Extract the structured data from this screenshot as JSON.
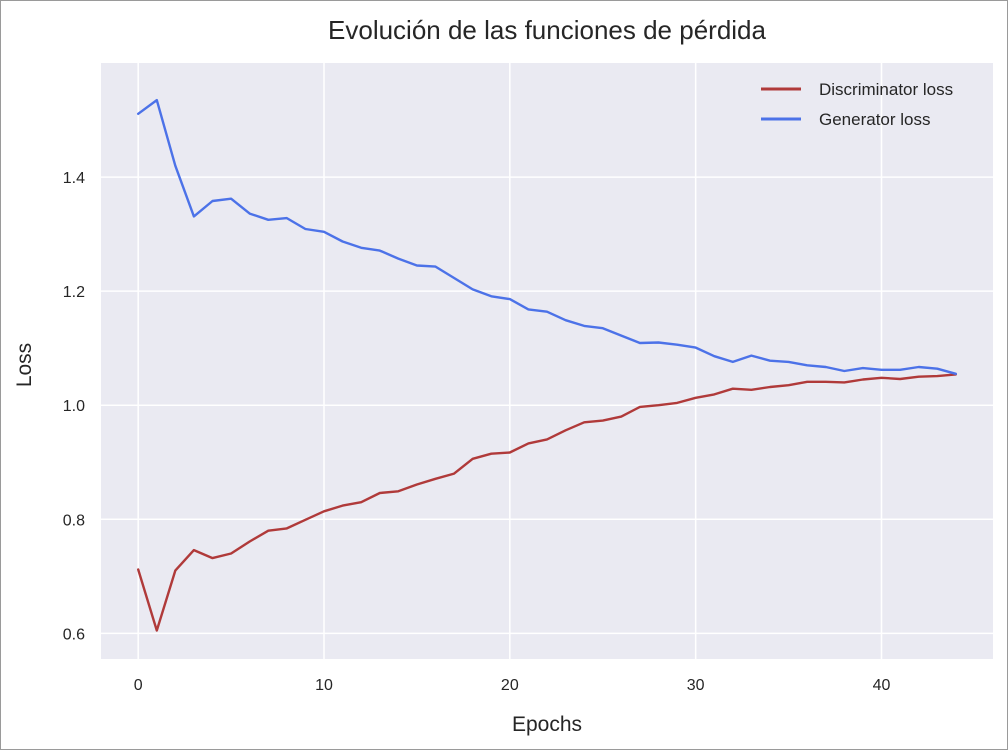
{
  "chart_data": {
    "type": "line",
    "title": "Evolución de las funciones de pérdida",
    "xlabel": "Epochs",
    "ylabel": "Loss",
    "xlim": [
      -2,
      46
    ],
    "ylim": [
      0.555,
      1.6
    ],
    "xticks": [
      0,
      10,
      20,
      30,
      40
    ],
    "yticks": [
      0.6,
      0.8,
      1.0,
      1.2,
      1.4
    ],
    "xtick_labels": [
      "0",
      "10",
      "20",
      "30",
      "40"
    ],
    "ytick_labels": [
      "0.6",
      "0.8",
      "1.0",
      "1.2",
      "1.4"
    ],
    "grid": true,
    "legend_position": "top-right",
    "background": "#eaeaf2",
    "x": [
      0,
      1,
      2,
      3,
      4,
      5,
      6,
      7,
      8,
      9,
      10,
      11,
      12,
      13,
      14,
      15,
      16,
      17,
      18,
      19,
      20,
      21,
      22,
      23,
      24,
      25,
      26,
      27,
      28,
      29,
      30,
      31,
      32,
      33,
      34,
      35,
      36,
      37,
      38,
      39,
      40,
      41,
      42,
      43,
      44
    ],
    "series": [
      {
        "name": "Discriminator loss",
        "color": "#b03a3a",
        "values": [
          0.712,
          0.605,
          0.71,
          0.746,
          0.732,
          0.74,
          0.761,
          0.78,
          0.784,
          0.799,
          0.814,
          0.824,
          0.83,
          0.846,
          0.849,
          0.861,
          0.871,
          0.88,
          0.906,
          0.915,
          0.917,
          0.933,
          0.94,
          0.956,
          0.97,
          0.973,
          0.98,
          0.997,
          1.0,
          1.004,
          1.013,
          1.019,
          1.029,
          1.027,
          1.032,
          1.035,
          1.041,
          1.041,
          1.04,
          1.045,
          1.048,
          1.046,
          1.05,
          1.051,
          1.054
        ]
      },
      {
        "name": "Generator loss",
        "color": "#4c72e8",
        "values": [
          1.511,
          1.535,
          1.42,
          1.331,
          1.358,
          1.362,
          1.336,
          1.325,
          1.328,
          1.309,
          1.304,
          1.287,
          1.276,
          1.271,
          1.257,
          1.245,
          1.243,
          1.223,
          1.203,
          1.191,
          1.186,
          1.168,
          1.164,
          1.149,
          1.139,
          1.135,
          1.122,
          1.109,
          1.11,
          1.106,
          1.101,
          1.086,
          1.076,
          1.087,
          1.078,
          1.076,
          1.07,
          1.067,
          1.06,
          1.065,
          1.062,
          1.062,
          1.067,
          1.064,
          1.055
        ]
      }
    ]
  }
}
